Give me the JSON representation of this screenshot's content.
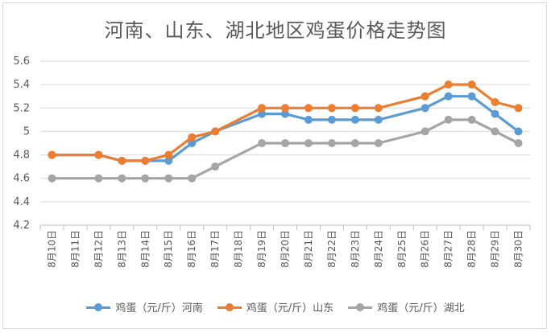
{
  "chart_data": {
    "type": "line",
    "title": "河南、山东、湖北地区鸡蛋价格走势图",
    "categories": [
      "8月10日",
      "8月11日",
      "8月12日",
      "8月13日",
      "8月14日",
      "8月15日",
      "8月16日",
      "8月17日",
      "8月18日",
      "8月19日",
      "8月20日",
      "8月21日",
      "8月22日",
      "8月23日",
      "8月24日",
      "8月25日",
      "8月26日",
      "8月27日",
      "8月28日",
      "8月29日",
      "8月30日"
    ],
    "ylim": [
      4.2,
      5.6
    ],
    "yticks": [
      "4.2",
      "4.4",
      "4.6",
      "4.8",
      "5",
      "5.2",
      "5.4",
      "5.6"
    ],
    "grid": true,
    "legend_position": "bottom",
    "series": [
      {
        "name": "鸡蛋（元/斤）河南",
        "color": "#5b9bd5",
        "values": [
          4.8,
          null,
          4.8,
          4.75,
          4.75,
          4.75,
          4.9,
          5.0,
          null,
          5.15,
          5.15,
          5.1,
          5.1,
          5.1,
          5.1,
          null,
          5.2,
          5.3,
          5.3,
          5.15,
          5.0
        ]
      },
      {
        "name": "鸡蛋（元/斤）山东",
        "color": "#ed7d31",
        "values": [
          4.8,
          null,
          4.8,
          4.75,
          4.75,
          4.8,
          4.95,
          5.0,
          null,
          5.2,
          5.2,
          5.2,
          5.2,
          5.2,
          5.2,
          null,
          5.3,
          5.4,
          5.4,
          5.25,
          5.2
        ]
      },
      {
        "name": "鸡蛋（元/斤）湖北",
        "color": "#a5a5a5",
        "values": [
          4.6,
          null,
          4.6,
          4.6,
          4.6,
          4.6,
          4.6,
          4.7,
          null,
          4.9,
          4.9,
          4.9,
          4.9,
          4.9,
          4.9,
          null,
          5.0,
          5.1,
          5.1,
          5.0,
          4.9
        ]
      }
    ]
  }
}
